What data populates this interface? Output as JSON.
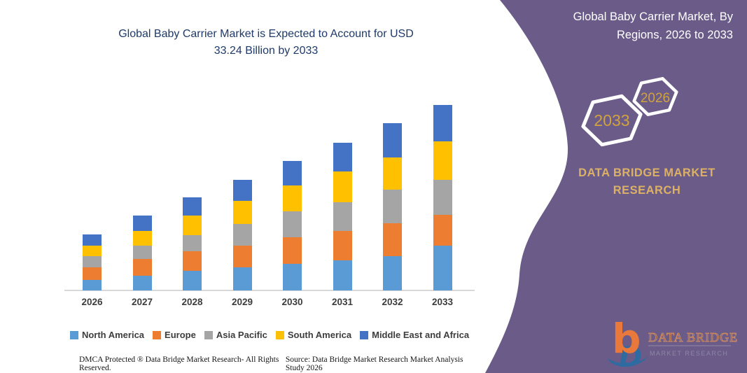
{
  "main_title": {
    "line1": "Global Baby Carrier Market is Expected to Account for USD",
    "line2": "33.24 Billion by 2033"
  },
  "panel": {
    "title_line1": "Global Baby Carrier Market, By",
    "title_line2": "Regions, 2026 to 2033",
    "hexagons": [
      {
        "label": "2033"
      },
      {
        "label": "2026"
      }
    ],
    "brand": {
      "line1": "DATA BRIDGE MARKET",
      "line2": "RESEARCH"
    },
    "logo": {
      "monogram": "b",
      "name": "DATA BRIDGE",
      "sub": "MARKET RESEARCH"
    },
    "colors": {
      "panel_bg": "#6a5b88",
      "gold": "#d1a33c",
      "brand_gold": "#dcb166"
    }
  },
  "chart_data": {
    "type": "bar",
    "stacked": true,
    "title": "Global Baby Carrier Market is Expected to Account for USD 33.24 Billion by 2033",
    "unit": "USD Billion",
    "categories": [
      "2026",
      "2027",
      "2028",
      "2029",
      "2030",
      "2031",
      "2032",
      "2033"
    ],
    "series": [
      {
        "name": "North America",
        "color": "#5B9BD5",
        "values": [
          1.9,
          2.6,
          3.5,
          4.1,
          4.8,
          5.4,
          6.1,
          8.0
        ]
      },
      {
        "name": "Europe",
        "color": "#ED7D31",
        "values": [
          2.3,
          3.0,
          3.6,
          4.0,
          4.7,
          5.3,
          6.0,
          5.6
        ]
      },
      {
        "name": "Asia Pacific",
        "color": "#A5A5A5",
        "values": [
          1.9,
          2.5,
          2.8,
          3.8,
          4.7,
          5.1,
          6.0,
          6.3
        ]
      },
      {
        "name": "South America",
        "color": "#FFC000",
        "values": [
          2.0,
          2.6,
          3.5,
          4.2,
          4.6,
          5.5,
          5.8,
          6.9
        ]
      },
      {
        "name": "Middle East and Africa",
        "color": "#4472C4",
        "values": [
          2.0,
          2.7,
          3.3,
          3.8,
          4.5,
          5.2,
          6.1,
          6.5
        ]
      }
    ],
    "totals_usd_billion": [
      10.1,
      13.4,
      16.7,
      19.9,
      23.3,
      26.5,
      30.0,
      33.3
    ],
    "highlight_total_2033": 33.24,
    "ylim": [
      0,
      35
    ],
    "grid": false,
    "y_axis_shown": false,
    "legend_position": "bottom"
  },
  "footer": {
    "dmca": "DMCA Protected ® Data Bridge Market Research-  All Rights Reserved.",
    "source": "Source: Data Bridge Market Research  Market Analysis Study 2026"
  }
}
